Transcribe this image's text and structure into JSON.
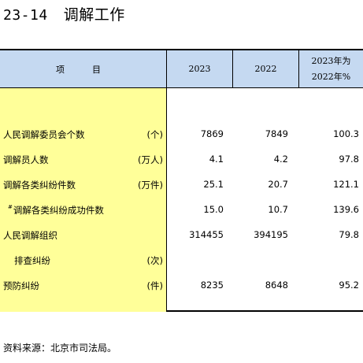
{
  "title": {
    "number": "23-14",
    "name": "调解工作"
  },
  "header": {
    "item": "项　目",
    "col1": "2023",
    "col2": "2022",
    "col3_line1": "2023年为",
    "col3_line2": "2022年%"
  },
  "rows": [
    {
      "prefix": "",
      "label": "人民调解委员会个数",
      "unit": "(个)",
      "v2023": "7869",
      "v2022": "7849",
      "ratio": "100.3"
    },
    {
      "prefix": "",
      "label": "调解员人数",
      "unit": "(万人)",
      "v2023": "4.1",
      "v2022": "4.2",
      "ratio": "97.8"
    },
    {
      "prefix": "",
      "label": "调解各类纠纷件数",
      "unit": "(万件)",
      "v2023": "25.1",
      "v2022": "20.7",
      "ratio": "121.1"
    },
    {
      "prefix": "#",
      "label": "调解各类纠纷成功件数",
      "unit": "",
      "v2023": "15.0",
      "v2022": "10.7",
      "ratio": "139.6"
    },
    {
      "prefix": "",
      "label": "人民调解组织",
      "unit": "",
      "v2023": "314455",
      "v2022": "394195",
      "ratio": "79.8"
    },
    {
      "prefix": "",
      "label": "排查纠纷",
      "unit": "(次)",
      "v2023": "",
      "v2022": "",
      "ratio": ""
    },
    {
      "prefix": "",
      "label": "预防纠纷",
      "unit": "(件)",
      "v2023": "8235",
      "v2022": "8648",
      "ratio": "95.2"
    }
  ],
  "source": "资料来源：北京市司法局。"
}
